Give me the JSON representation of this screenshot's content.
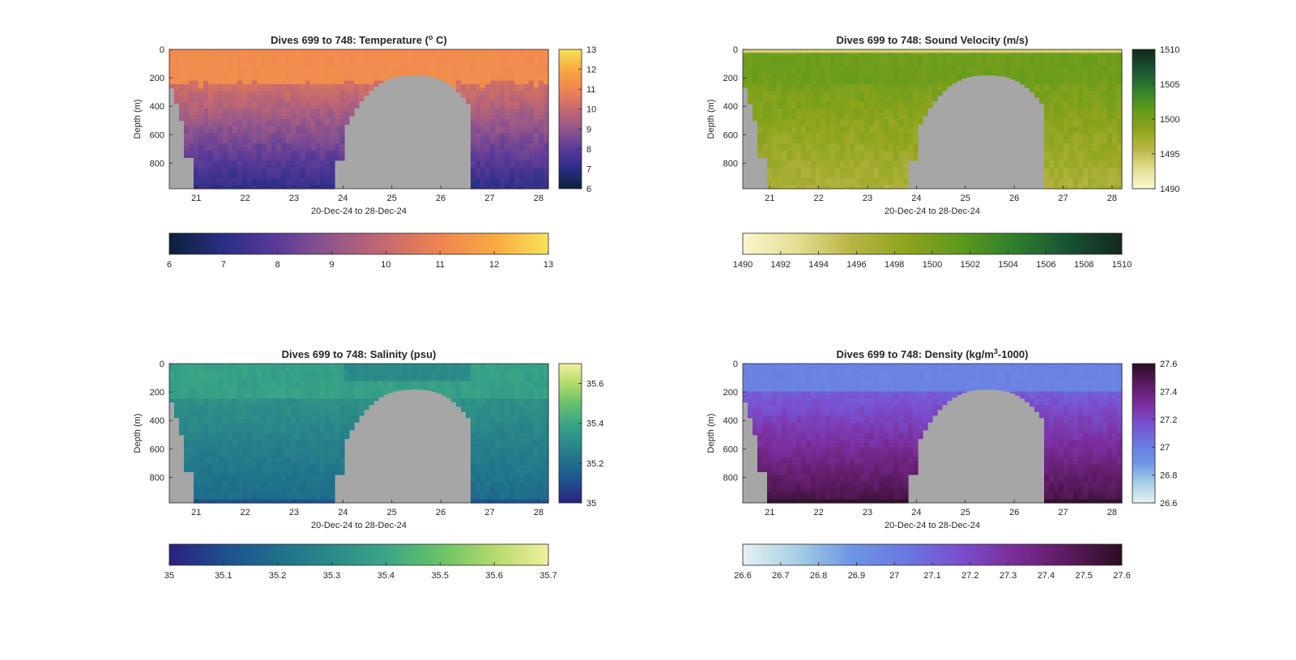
{
  "chart_data": [
    {
      "type": "heatmap",
      "title": "Dives 699 to 748: Temperature (",
      "title_sup": "o",
      "title_after": " C)",
      "xlabel": "20-Dec-24 to 28-Dec-24",
      "ylabel": "Depth (m)",
      "xlim": [
        20.45,
        28.2
      ],
      "ylim": [
        0,
        980
      ],
      "x_ticks": [
        21,
        22,
        23,
        24,
        25,
        26,
        27,
        28
      ],
      "y_ticks": [
        0,
        200,
        400,
        600,
        800
      ],
      "colorbar_ticks": [
        6,
        7,
        8,
        9,
        10,
        11,
        12,
        13
      ],
      "colorbar_range": [
        6,
        13
      ],
      "colormap": [
        "#0b2038",
        "#2a2e86",
        "#5a3a98",
        "#93568c",
        "#c66a6e",
        "#ef8550",
        "#f8a942",
        "#f6e358"
      ],
      "surface_value": 11.2,
      "bottom_value": 7.4,
      "mixed_layer_depth": 240,
      "dive_pattern": "temperature"
    },
    {
      "type": "heatmap",
      "title": "Dives 699 to 748: Sound Velocity (m/s)",
      "title_sup": "",
      "title_after": "",
      "xlabel": "20-Dec-24 to 28-Dec-24",
      "ylabel": "Depth (m)",
      "xlim": [
        20.45,
        28.2
      ],
      "ylim": [
        0,
        980
      ],
      "x_ticks": [
        21,
        22,
        23,
        24,
        25,
        26,
        27,
        28
      ],
      "y_ticks": [
        0,
        200,
        400,
        600,
        800
      ],
      "colorbar_ticks": [
        1495,
        1500,
        1505,
        1510
      ],
      "colorbar_ticks_extra": [
        1490
      ],
      "colorbar_range": [
        1490,
        1510
      ],
      "horizontal_colorbar_ticks": [
        1490,
        1492,
        1494,
        1496,
        1498,
        1500,
        1502,
        1504,
        1506,
        1508,
        1510
      ],
      "colormap": [
        "#fcf6cf",
        "#e3de92",
        "#b9b545",
        "#8ea41d",
        "#5f9a1c",
        "#2f7f2c",
        "#175333",
        "#13281d"
      ],
      "surface_value": 1494.6,
      "bottom_value": 1496.8,
      "mixed_layer_depth": 240,
      "dive_pattern": "sound"
    },
    {
      "type": "heatmap",
      "title": "Dives 699 to 748: Salinity (psu)",
      "title_sup": "",
      "title_after": "",
      "xlabel": "20-Dec-24 to 28-Dec-24",
      "ylabel": "Depth (m)",
      "xlim": [
        20.45,
        28.2
      ],
      "ylim": [
        0,
        980
      ],
      "x_ticks": [
        21,
        22,
        23,
        24,
        25,
        26,
        27,
        28
      ],
      "y_ticks": [
        0,
        200,
        400,
        600,
        800
      ],
      "colorbar_ticks": [
        35,
        35.2,
        35.4,
        35.6
      ],
      "colorbar_range": [
        35,
        35.7
      ],
      "horizontal_colorbar_ticks": [
        35,
        35.1,
        35.2,
        35.3,
        35.4,
        35.5,
        35.6,
        35.7
      ],
      "colormap": [
        "#2c1f7f",
        "#1e4f8e",
        "#1f6f8b",
        "#2a8a88",
        "#3aa586",
        "#68c268",
        "#b3da6a",
        "#f2ef9d"
      ],
      "surface_value": 35.39,
      "bottom_value": 35.2,
      "mixed_layer_depth": 240,
      "dive_pattern": "salinity"
    },
    {
      "type": "heatmap",
      "title": "Dives 699 to 748: Density (kg/m",
      "title_sup": "3",
      "title_after": "-1000)",
      "xlabel": "20-Dec-24 to 28-Dec-24",
      "ylabel": "Depth (m)",
      "xlim": [
        20.45,
        28.2
      ],
      "ylim": [
        0,
        980
      ],
      "x_ticks": [
        21,
        22,
        23,
        24,
        25,
        26,
        27,
        28
      ],
      "y_ticks": [
        0,
        200,
        400,
        600,
        800
      ],
      "colorbar_ticks": [
        26.6,
        26.8,
        27,
        27.2,
        27.4,
        27.6
      ],
      "colorbar_range": [
        26.6,
        27.6
      ],
      "horizontal_colorbar_ticks": [
        26.6,
        26.7,
        26.8,
        26.9,
        27,
        27.1,
        27.2,
        27.3,
        27.4,
        27.5,
        27.6
      ],
      "colormap": [
        "#e6f1f2",
        "#a6cfe4",
        "#6d96e4",
        "#6a78e2",
        "#7a4fcf",
        "#7b2c9a",
        "#5b1a5f",
        "#2a0e24"
      ],
      "surface_value": 26.98,
      "bottom_value": 27.48,
      "mixed_layer_depth": 240,
      "dive_pattern": "density"
    }
  ],
  "colors": {
    "no_data": "#a6a6a6",
    "axis": "#262626"
  }
}
